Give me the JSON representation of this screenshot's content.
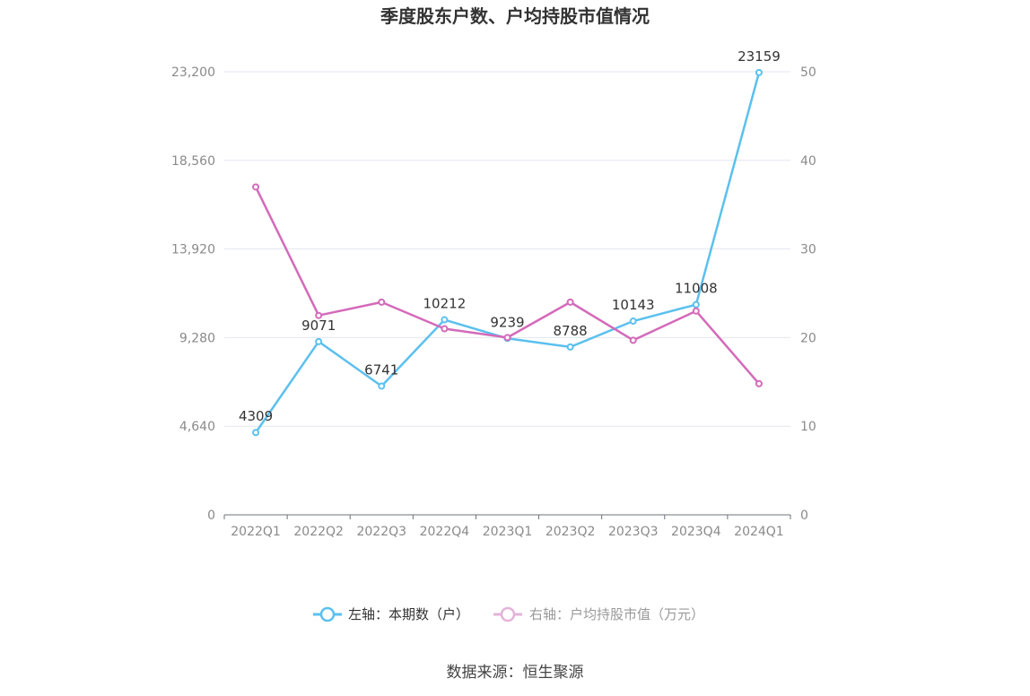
{
  "chart_data": {
    "type": "line",
    "title": "季度股东户数、户均持股市值情况",
    "categories": [
      "2022Q1",
      "2022Q2",
      "2022Q3",
      "2022Q4",
      "2023Q1",
      "2023Q2",
      "2023Q3",
      "2023Q4",
      "2024Q1"
    ],
    "left_axis": {
      "ticks": [
        "0",
        "4,640",
        "9,280",
        "13,920",
        "18,560",
        "23,200"
      ],
      "ylim": [
        0,
        23200
      ]
    },
    "right_axis": {
      "ticks": [
        "0",
        "10",
        "20",
        "30",
        "40",
        "50"
      ],
      "ylim": [
        0,
        50
      ]
    },
    "series": [
      {
        "name": "左轴：本期数（户）",
        "axis": "left",
        "color": "#5bc0ee",
        "values": [
          4309,
          9071,
          6741,
          10212,
          9239,
          8788,
          10143,
          11008,
          23159
        ],
        "labels": [
          "4309",
          "9071",
          "6741",
          "10212",
          "9239",
          "8788",
          "10143",
          "11008",
          "23159"
        ]
      },
      {
        "name": "右轴：户均持股市值（万元）",
        "axis": "right",
        "color": "#d46aba",
        "values": [
          37.0,
          22.5,
          24.0,
          21.0,
          20.0,
          24.0,
          19.7,
          23.0,
          14.8
        ]
      }
    ],
    "grid": true,
    "legend_position": "bottom"
  },
  "legend": {
    "left_label": "左轴：本期数（户）",
    "right_label": "右轴：户均持股市值（万元）"
  },
  "source": "数据来源：恒生聚源",
  "colors": {
    "grid": "#e3e6ef",
    "axis": "#6e7079",
    "left_legend_text": "#333333",
    "right_legend_text": "#999999",
    "right_legend_icon": "#e4b3d9"
  }
}
